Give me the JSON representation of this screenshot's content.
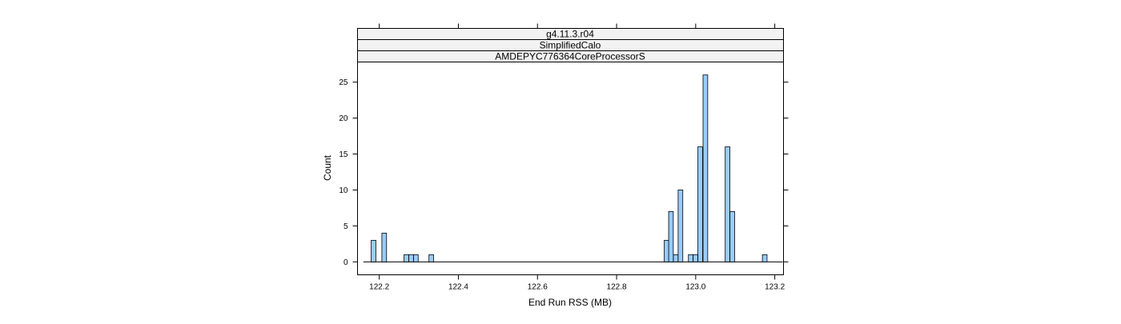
{
  "chart_data": {
    "type": "bar",
    "strips": [
      "g4.11.3.r04",
      "SimplifiedCalo",
      "AMDEPYC776364CoreProcessorS"
    ],
    "xlabel": "End Run RSS (MB)",
    "ylabel": "Count",
    "xlim": [
      122.145,
      123.222
    ],
    "ylim": [
      -1.8,
      27.8
    ],
    "x_ticks": [
      122.2,
      122.4,
      122.6,
      122.8,
      123.0,
      123.2
    ],
    "x_tick_labels": [
      "122.2",
      "122.4",
      "122.6",
      "122.8",
      "123.0",
      "123.2"
    ],
    "y_ticks": [
      0,
      5,
      10,
      15,
      20,
      25
    ],
    "y_tick_labels": [
      "0",
      "5",
      "10",
      "15",
      "20",
      "25"
    ],
    "baseline_range": [
      122.16,
      123.22
    ],
    "bin_width": 0.0118,
    "bins": [
      {
        "x": 122.1855,
        "count": 3
      },
      {
        "x": 122.2125,
        "count": 4
      },
      {
        "x": 122.2685,
        "count": 1
      },
      {
        "x": 122.2805,
        "count": 1
      },
      {
        "x": 122.2925,
        "count": 1
      },
      {
        "x": 122.3315,
        "count": 1
      },
      {
        "x": 122.9265,
        "count": 3
      },
      {
        "x": 122.9375,
        "count": 7
      },
      {
        "x": 122.9495,
        "count": 1
      },
      {
        "x": 122.9615,
        "count": 10
      },
      {
        "x": 122.9875,
        "count": 1
      },
      {
        "x": 122.9995,
        "count": 1
      },
      {
        "x": 123.0115,
        "count": 16
      },
      {
        "x": 123.0245,
        "count": 26
      },
      {
        "x": 123.0805,
        "count": 16
      },
      {
        "x": 123.0925,
        "count": 7
      },
      {
        "x": 123.1745,
        "count": 1
      }
    ],
    "colors": {
      "bar_fill": "#99ccff",
      "bar_stroke": "#000000",
      "strip_fill": "#f2f2f2"
    }
  }
}
